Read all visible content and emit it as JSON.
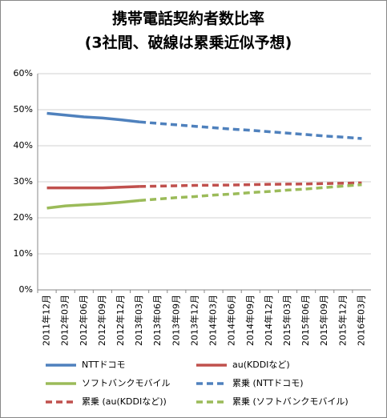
{
  "chart_data": {
    "type": "line",
    "title": "携帯電話契約者数比率",
    "subtitle": "(3社間、破線は累乗近似予想)",
    "categories": [
      "2011年12月",
      "2012年03月",
      "2012年06月",
      "2012年09月",
      "2012年12月",
      "2013年03月",
      "2013年06月",
      "2013年09月",
      "2013年12月",
      "2014年03月",
      "2014年06月",
      "2014年09月",
      "2014年12月",
      "2015年03月",
      "2015年06月",
      "2015年09月",
      "2015年12月",
      "2016年03月"
    ],
    "series": [
      {
        "name": "NTTドコモ",
        "color": "#4f81bd",
        "dashed": false,
        "values": [
          49.0,
          48.5,
          48.0,
          47.7,
          47.2,
          46.6,
          null,
          null,
          null,
          null,
          null,
          null,
          null,
          null,
          null,
          null,
          null,
          null
        ]
      },
      {
        "name": "au(KDDIなど)",
        "color": "#c0504d",
        "dashed": false,
        "values": [
          28.3,
          28.3,
          28.3,
          28.3,
          28.5,
          28.7,
          null,
          null,
          null,
          null,
          null,
          null,
          null,
          null,
          null,
          null,
          null,
          null
        ]
      },
      {
        "name": "ソフトバンクモバイル",
        "color": "#9bbb59",
        "dashed": false,
        "values": [
          22.7,
          23.3,
          23.6,
          23.9,
          24.3,
          24.8,
          null,
          null,
          null,
          null,
          null,
          null,
          null,
          null,
          null,
          null,
          null,
          null
        ]
      },
      {
        "name": "累乗 (NTTドコモ)",
        "color": "#4f81bd",
        "dashed": true,
        "values": [
          null,
          null,
          null,
          null,
          null,
          46.6,
          46.2,
          45.8,
          45.4,
          45.0,
          44.6,
          44.3,
          43.9,
          43.5,
          43.1,
          42.7,
          42.4,
          42.0
        ]
      },
      {
        "name": "累乗 (au(KDDIなど))",
        "color": "#c0504d",
        "dashed": true,
        "values": [
          null,
          null,
          null,
          null,
          null,
          28.7,
          28.8,
          28.9,
          29.0,
          29.05,
          29.1,
          29.2,
          29.3,
          29.35,
          29.4,
          29.5,
          29.6,
          29.7
        ]
      },
      {
        "name": "累乗 (ソフトバンクモバイル)",
        "color": "#9bbb59",
        "dashed": true,
        "values": [
          null,
          null,
          null,
          null,
          null,
          24.8,
          25.2,
          25.6,
          25.9,
          26.3,
          26.6,
          27.0,
          27.3,
          27.7,
          28.0,
          28.4,
          28.8,
          29.2
        ]
      }
    ],
    "ylim": [
      0,
      60
    ],
    "yticks": [
      {
        "value": 0,
        "label": "0%"
      },
      {
        "value": 10,
        "label": "10%"
      },
      {
        "value": 20,
        "label": "20%"
      },
      {
        "value": 30,
        "label": "30%"
      },
      {
        "value": 40,
        "label": "40%"
      },
      {
        "value": 50,
        "label": "50%"
      },
      {
        "value": 60,
        "label": "60%"
      }
    ],
    "grid": true
  }
}
